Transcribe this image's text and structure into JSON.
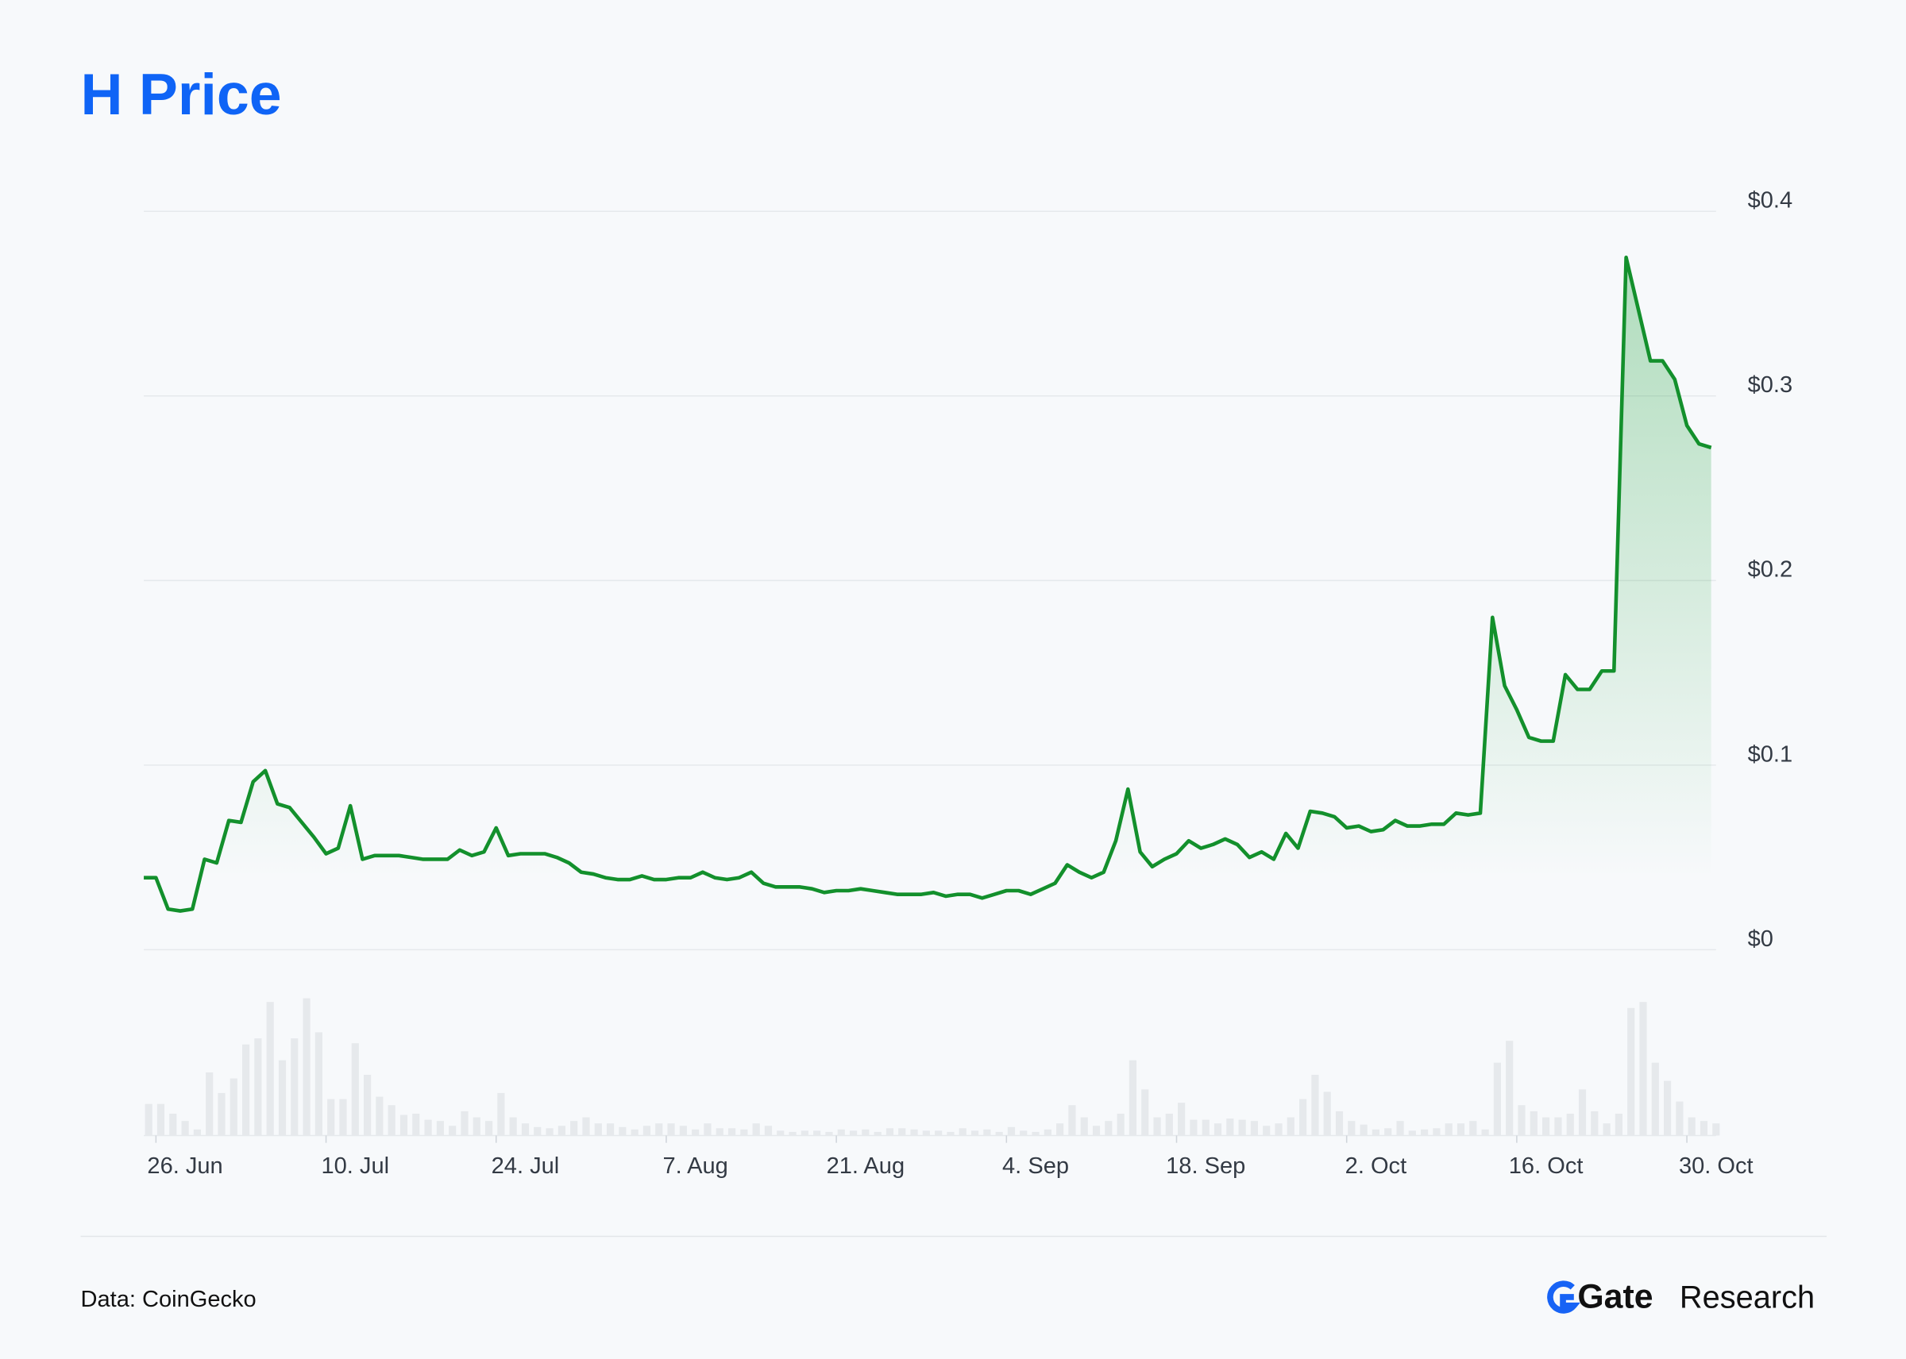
{
  "chart_data": {
    "type": "line",
    "title": "H Price",
    "categories": [
      null,
      "26. Jun",
      null,
      null,
      null,
      null,
      null,
      null,
      null,
      null,
      null,
      null,
      null,
      null,
      null,
      "10. Jul",
      null,
      null,
      null,
      null,
      null,
      null,
      null,
      null,
      null,
      null,
      null,
      null,
      null,
      "24. Jul",
      null,
      null,
      null,
      null,
      null,
      null,
      null,
      null,
      null,
      null,
      null,
      null,
      null,
      "7. Aug",
      null,
      null,
      null,
      null,
      null,
      null,
      null,
      null,
      null,
      null,
      null,
      null,
      null,
      "21. Aug",
      null,
      null,
      null,
      null,
      null,
      null,
      null,
      null,
      null,
      null,
      null,
      null,
      null,
      "4. Sep",
      null,
      null,
      null,
      null,
      null,
      null,
      null,
      null,
      null,
      null,
      null,
      null,
      null,
      "18. Sep",
      null,
      null,
      null,
      null,
      null,
      null,
      null,
      null,
      null,
      null,
      null,
      null,
      null,
      "2. Oct",
      null,
      null,
      null,
      null,
      null,
      null,
      null,
      null,
      null,
      null,
      null,
      null,
      null,
      "16. Oct",
      null,
      null,
      null,
      null,
      null,
      null,
      null,
      null,
      null,
      null,
      null,
      null,
      null,
      "30. Oct",
      null,
      null
    ],
    "series": [
      {
        "color": "#13902c",
        "values": [
          0.039,
          0.039,
          0.022,
          0.021,
          0.022,
          0.049,
          0.047,
          0.07,
          0.069,
          0.091,
          0.097,
          0.079,
          0.077,
          0.069,
          0.061,
          0.052,
          0.055,
          0.078,
          0.049,
          0.051,
          0.051,
          0.051,
          0.05,
          0.049,
          0.049,
          0.049,
          0.054,
          0.051,
          0.053,
          0.066,
          0.051,
          0.052,
          0.052,
          0.052,
          0.05,
          0.047,
          0.042,
          0.041,
          0.039,
          0.038,
          0.038,
          0.04,
          0.038,
          0.038,
          0.039,
          0.039,
          0.042,
          0.039,
          0.038,
          0.039,
          0.042,
          0.036,
          0.034,
          0.034,
          0.034,
          0.033,
          0.031,
          0.032,
          0.032,
          0.033,
          0.032,
          0.031,
          0.03,
          0.03,
          0.03,
          0.031,
          0.029,
          0.03,
          0.03,
          0.028,
          0.03,
          0.032,
          0.032,
          0.03,
          0.033,
          0.036,
          0.046,
          0.042,
          0.039,
          0.042,
          0.059,
          0.087,
          0.053,
          0.045,
          0.049,
          0.052,
          0.059,
          0.055,
          0.057,
          0.06,
          0.057,
          0.05,
          0.053,
          0.049,
          0.063,
          0.055,
          0.075,
          0.074,
          0.072,
          0.066,
          0.067,
          0.064,
          0.065,
          0.07,
          0.067,
          0.067,
          0.068,
          0.068,
          0.074,
          0.073,
          0.074,
          0.18,
          0.143,
          0.13,
          0.115,
          0.113,
          0.113,
          0.149,
          0.141,
          0.141,
          0.151,
          0.151,
          0.375,
          0.347,
          0.319,
          0.319,
          0.309,
          0.284,
          0.274,
          0.272
        ]
      }
    ],
    "volume": [
      26,
      26,
      18,
      12,
      5,
      52,
      35,
      47,
      75,
      80,
      110,
      62,
      80,
      113,
      85,
      30,
      30,
      76,
      50,
      32,
      25,
      17,
      18,
      13,
      12,
      8,
      20,
      15,
      12,
      35,
      15,
      10,
      7,
      6,
      8,
      12,
      15,
      10,
      10,
      7,
      5,
      8,
      10,
      10,
      8,
      5,
      10,
      6,
      6,
      5,
      10,
      8,
      4,
      3,
      4,
      4,
      3,
      5,
      4,
      5,
      3,
      6,
      6,
      5,
      4,
      4,
      3,
      6,
      4,
      5,
      3,
      7,
      4,
      3,
      5,
      10,
      25,
      15,
      8,
      12,
      18,
      62,
      38,
      15,
      18,
      27,
      13,
      13,
      10,
      14,
      13,
      12,
      8,
      10,
      15,
      30,
      50,
      36,
      20,
      12,
      9,
      5,
      6,
      12,
      4,
      5,
      6,
      10,
      10,
      12,
      5,
      60,
      78,
      25,
      20,
      15,
      15,
      18,
      38,
      20,
      10,
      18,
      105,
      110,
      60,
      45,
      28,
      15,
      12,
      10
    ],
    "volume_color": "#e6e9ec",
    "ylim": [
      0,
      0.4
    ],
    "yticks": [
      {
        "value": 0,
        "label": "$0"
      },
      {
        "value": 0.1,
        "label": "$0.1"
      },
      {
        "value": 0.2,
        "label": "$0.2"
      },
      {
        "value": 0.3,
        "label": "$0.3"
      },
      {
        "value": 0.4,
        "label": "$0.4"
      }
    ],
    "grid": true
  },
  "footer": {
    "source": "Data: CoinGecko",
    "brand_bold": "Gate",
    "brand_light": "Research"
  }
}
